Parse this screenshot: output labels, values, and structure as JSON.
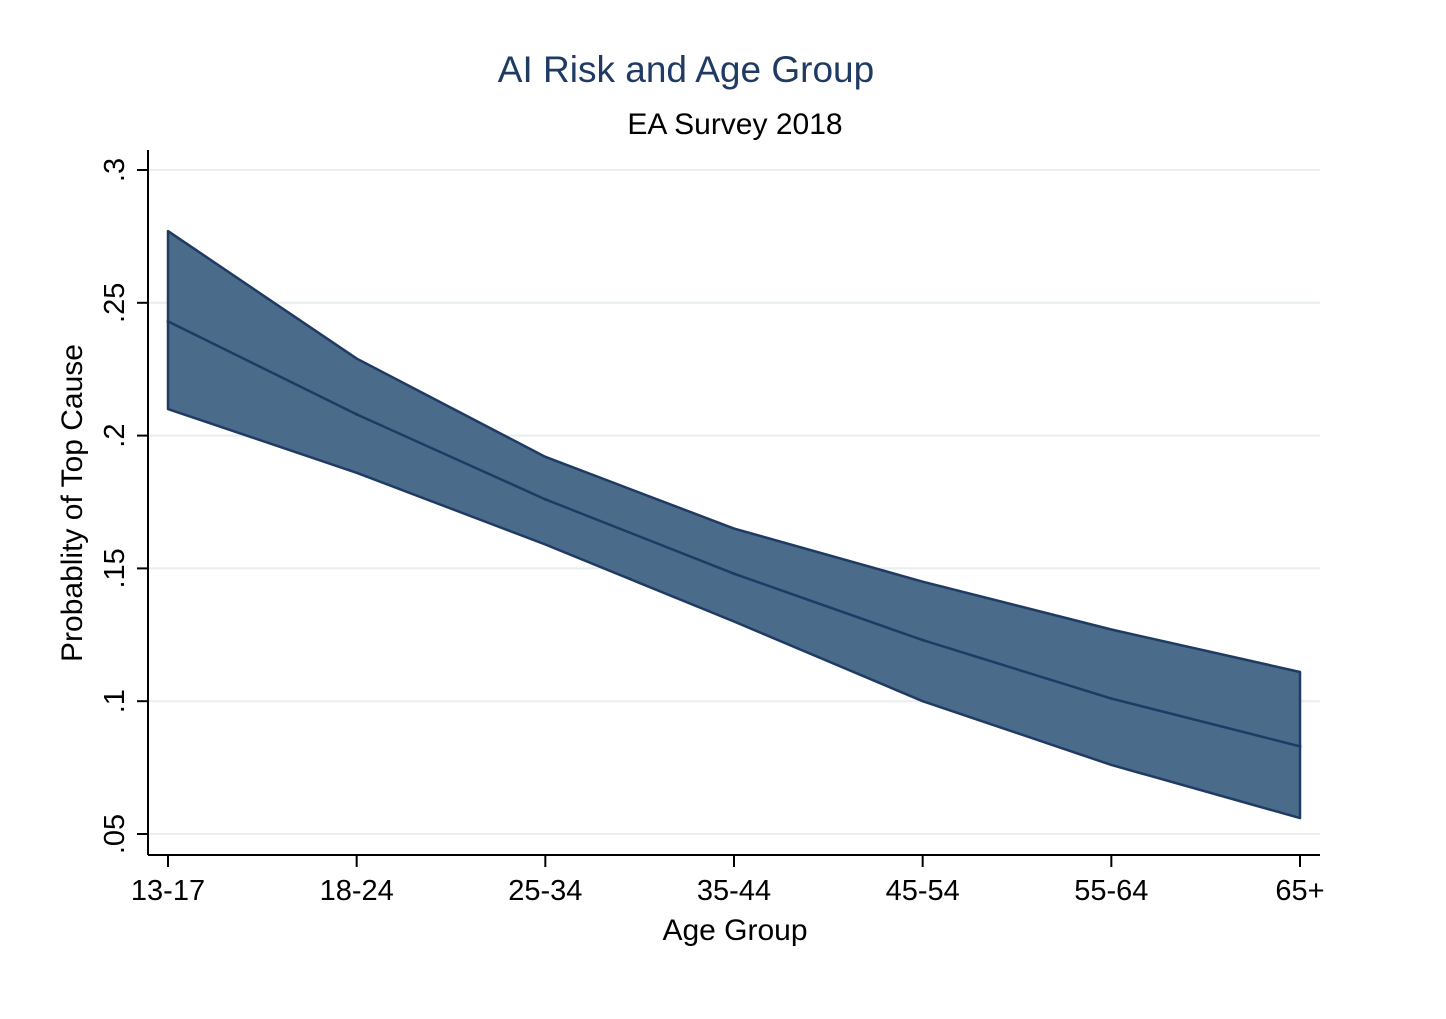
{
  "chart_data": {
    "type": "area",
    "title": "AI Risk and Age Group",
    "subtitle": "EA Survey 2018",
    "xlabel": "Age Group",
    "ylabel": "Probablity of Top Cause",
    "categories": [
      "13-17",
      "18-24",
      "25-34",
      "35-44",
      "45-54",
      "55-64",
      "65+"
    ],
    "y_tick_values": [
      0.05,
      0.1,
      0.15,
      0.2,
      0.25,
      0.3
    ],
    "y_tick_labels": [
      ".05",
      ".1",
      ".15",
      ".2",
      ".25",
      ".3"
    ],
    "ylim": [
      0.042,
      0.308
    ],
    "grid": true,
    "legend": "none",
    "series": [
      {
        "estimate": [
          0.243,
          0.208,
          0.176,
          0.148,
          0.123,
          0.101,
          0.083
        ],
        "lower": [
          0.21,
          0.186,
          0.159,
          0.13,
          0.1,
          0.076,
          0.056
        ],
        "upper": [
          0.277,
          0.229,
          0.192,
          0.165,
          0.145,
          0.127,
          0.111
        ]
      }
    ],
    "colors": {
      "band_fill": "#4a6b8a",
      "band_edge": "#1f3a63",
      "estimate_line": "#1f3a63",
      "grid": "#e8eef0",
      "title": "#1f3a63"
    }
  }
}
